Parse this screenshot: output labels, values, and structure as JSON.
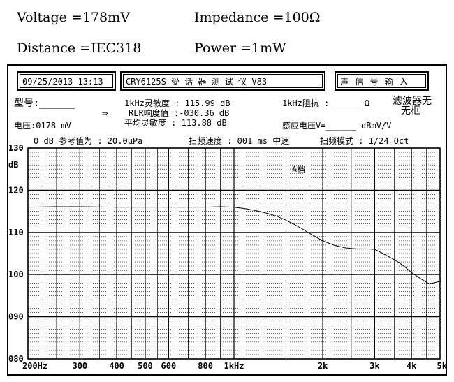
{
  "header": {
    "voltage": "Voltage =178mV",
    "impedance": "Impedance =100Ω",
    "distance": "Distance =IEC318",
    "power": "Power =1mW"
  },
  "screen": {
    "datetime": "09/25/2013 13:13",
    "device_title": "CRY6125S 受 话 器 测 试 仪 V83",
    "mode_label": "声 信 号 输 入",
    "model_label": "型号:______",
    "arrow": "⇒",
    "sensitivity_1k": "1kHz灵敏度 : 115.99 dB",
    "rlr": "RLR响度值 :-030.36 dB",
    "avg_sensitivity": "平均灵敏度 : 113.88 dB",
    "impedance_1k": "1kHz阻抗 : _____ Ω",
    "filter_line1": "滤波器无",
    "filter_line2": "无框",
    "voltage_reading": "电压:0178 mV",
    "induced_voltage": "感应电压V=______ dBmV/V",
    "ref_value": "0 dB 参考值为 : 20.0μPa",
    "sweep_speed": "扫频速度 : 001 ms 中速",
    "sweep_mode": "扫频模式 : 1/24 Oct",
    "range_label": "A档"
  },
  "chart_data": {
    "type": "line",
    "title": "",
    "xlabel": "",
    "ylabel": "dB",
    "x_scale": "log",
    "xlim": [
      200,
      5000
    ],
    "ylim": [
      80,
      130
    ],
    "x_ticks": [
      200,
      300,
      400,
      500,
      600,
      800,
      1000,
      2000,
      3000,
      4000,
      5000
    ],
    "x_tick_labels": [
      "200Hz",
      "300",
      "400",
      "500",
      "600",
      "800",
      "1kHz",
      "2k",
      "3k",
      "4k",
      "5k"
    ],
    "y_ticks": [
      80,
      90,
      100,
      110,
      120,
      130
    ],
    "y_tick_labels": [
      "080",
      "090",
      "100",
      "110",
      "120",
      "130"
    ],
    "grid": true,
    "series": [
      {
        "x": [
          200,
          250,
          300,
          400,
          500,
          600,
          700,
          800,
          900,
          1000,
          1100,
          1200,
          1300,
          1400,
          1500,
          1600,
          1700,
          1800,
          1900,
          2000,
          2200,
          2400,
          2600,
          2800,
          3000,
          3200,
          3400,
          3600,
          3800,
          4000,
          4300,
          4600,
          5000
        ],
        "y": [
          116,
          116.1,
          116.1,
          116,
          116,
          116,
          116,
          116,
          116.1,
          116,
          115.6,
          115.1,
          114.5,
          113.8,
          112.9,
          111.9,
          110.9,
          109.8,
          108.9,
          108,
          106.9,
          106.3,
          106.1,
          106.1,
          106,
          105,
          104,
          103,
          101.8,
          100.5,
          99,
          97.8,
          98.4
        ]
      }
    ]
  }
}
